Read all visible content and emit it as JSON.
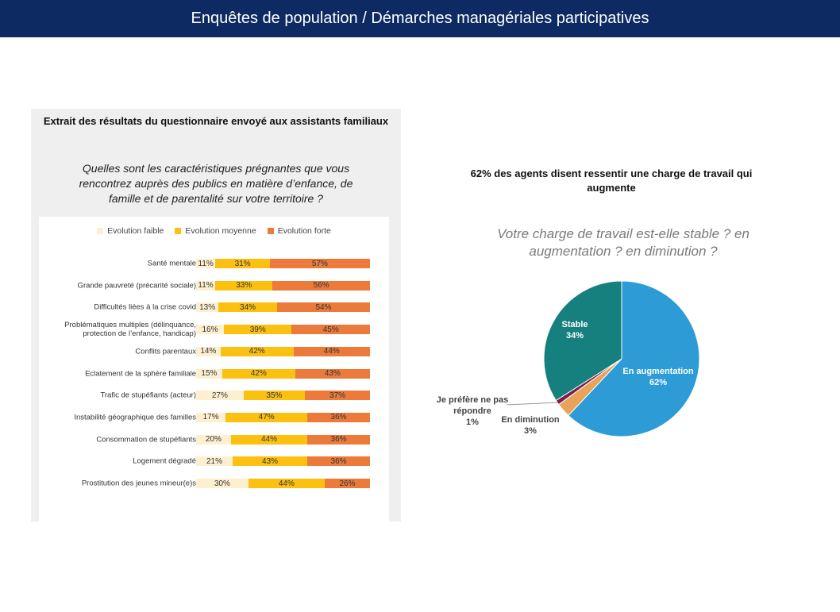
{
  "header": {
    "title": "Enquêtes de population / Démarches managériales participatives"
  },
  "left": {
    "title": "Extrait des résultats du questionnaire envoyé aux assistants familiaux",
    "question": "Quelles sont les caractéristiques prégnantes que vous rencontrez auprès des publics en matière d’enfance, de famille et de parentalité sur votre territoire ?"
  },
  "right": {
    "title": "62% des agents disent ressentir une charge de travail qui augmente",
    "question": "Votre charge de travail est-elle stable ? en augmentation ? en diminution ?"
  },
  "chart_data": [
    {
      "type": "bar",
      "orientation": "horizontal-stacked-100",
      "legend_position": "top",
      "categories": [
        "Santé mentale",
        "Grande pauvreté (précarité sociale)",
        "Difficultés liées à la crise covid",
        "Problématiques multiples (délinquance, protection de l’enfance, handicap)",
        "Conflits parentaux",
        "Eclatement de la sphère familiale",
        "Trafic de stupéfiants (acteur)",
        "Instabilité géographique des familles",
        "Consommation de stupéfiants",
        "Logement dégradé",
        "Prostitution des jeunes mineur(e)s"
      ],
      "series": [
        {
          "name": "Evolution faible",
          "color": "#fdf0d0",
          "values": [
            11,
            11,
            13,
            16,
            14,
            15,
            27,
            17,
            20,
            21,
            30
          ]
        },
        {
          "name": "Evolution moyenne",
          "color": "#fcc010",
          "values": [
            31,
            33,
            34,
            39,
            42,
            42,
            35,
            47,
            44,
            43,
            44
          ]
        },
        {
          "name": "Evolution forte",
          "color": "#ec7a3a",
          "values": [
            57,
            56,
            54,
            45,
            44,
            43,
            37,
            36,
            36,
            36,
            26
          ]
        }
      ]
    },
    {
      "type": "pie",
      "slices": [
        {
          "label": "En augmentation",
          "value": 62,
          "display": "62%",
          "color": "#2d9bd5"
        },
        {
          "label": "En diminution",
          "value": 3,
          "display": "3%",
          "color": "#e8a35a"
        },
        {
          "label": "Je préfère ne pas répondre",
          "value": 1,
          "display": "1%",
          "color": "#7a1f4a"
        },
        {
          "label": "Stable",
          "value": 34,
          "display": "34%",
          "color": "#15807d"
        }
      ]
    }
  ]
}
